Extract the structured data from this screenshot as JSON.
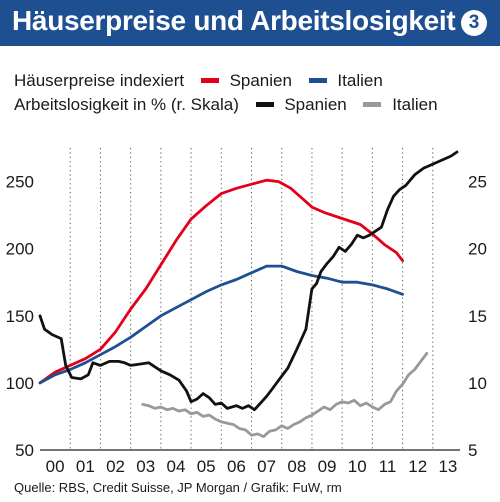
{
  "title": "Häuserpreise und Arbeitslosigkeit",
  "badge": "3",
  "legend": {
    "row1_label": "Häuserpreise indexiert",
    "row1_items": [
      {
        "name": "Spanien",
        "color": "#e3001b"
      },
      {
        "name": "Italien",
        "color": "#1d4f91"
      }
    ],
    "row2_label": "Arbeitslosigkeit in % (r. Skala)",
    "row2_items": [
      {
        "name": "Spanien",
        "color": "#111111"
      },
      {
        "name": "Italien",
        "color": "#999999"
      }
    ]
  },
  "source": "Quelle: RBS, Credit Suisse, JP Morgan / Grafik: FuW, rm",
  "chart_data": {
    "type": "line",
    "x_tick_labels": [
      "00",
      "01",
      "02",
      "03",
      "04",
      "05",
      "06",
      "07",
      "08",
      "09",
      "10",
      "11",
      "12",
      "13"
    ],
    "x_range": [
      2000.0,
      2013.9
    ],
    "left_axis": {
      "ylim": [
        50,
        275
      ],
      "ticks": [
        50,
        100,
        150,
        200,
        250
      ],
      "label": "Häuserpreise indexiert"
    },
    "right_axis": {
      "ylim": [
        5,
        27.5
      ],
      "ticks": [
        5,
        10,
        15,
        20,
        25
      ],
      "label": "Arbeitslosigkeit in % (r. Skala)"
    },
    "grid": "dotted vertical lines at year boundaries",
    "series": [
      {
        "name": "Spanien",
        "group": "Häuserpreise",
        "axis": "left",
        "color": "#e3001b",
        "width": 2.8,
        "x": [
          2000.0,
          2000.5,
          2001.0,
          2001.5,
          2002.0,
          2002.5,
          2003.0,
          2003.5,
          2004.0,
          2004.5,
          2005.0,
          2005.5,
          2006.0,
          2006.5,
          2007.0,
          2007.5,
          2007.9,
          2008.3,
          2008.7,
          2009.0,
          2009.4,
          2009.8,
          2010.2,
          2010.6,
          2011.0,
          2011.4,
          2011.8,
          2012.0
        ],
        "y": [
          100,
          108,
          113,
          118,
          125,
          138,
          155,
          170,
          188,
          206,
          222,
          232,
          241,
          245,
          248,
          251,
          250,
          245,
          237,
          231,
          227,
          224,
          221,
          218,
          211,
          203,
          197,
          191
        ]
      },
      {
        "name": "Italien",
        "group": "Häuserpreise",
        "axis": "left",
        "color": "#1d4f91",
        "width": 2.8,
        "x": [
          2000.0,
          2000.5,
          2001.0,
          2001.5,
          2002.0,
          2002.5,
          2003.0,
          2003.5,
          2004.0,
          2004.5,
          2005.0,
          2005.5,
          2006.0,
          2006.5,
          2007.0,
          2007.5,
          2008.0,
          2008.5,
          2009.0,
          2009.5,
          2010.0,
          2010.5,
          2011.0,
          2011.5,
          2012.0
        ],
        "y": [
          100,
          106,
          110,
          115,
          121,
          127,
          134,
          142,
          150,
          156,
          162,
          168,
          173,
          177,
          182,
          187,
          187,
          183,
          180,
          178,
          175,
          175,
          173,
          170,
          166
        ]
      },
      {
        "name": "Spanien",
        "group": "Arbeitslosigkeit",
        "axis": "right",
        "color": "#111111",
        "width": 2.8,
        "x": [
          2000.0,
          2000.15,
          2000.4,
          2000.7,
          2000.85,
          2001.05,
          2001.35,
          2001.6,
          2001.75,
          2002.0,
          2002.3,
          2002.6,
          2002.8,
          2003.0,
          2003.3,
          2003.6,
          2003.8,
          2004.0,
          2004.3,
          2004.6,
          2004.85,
          2005.0,
          2005.2,
          2005.4,
          2005.6,
          2005.8,
          2006.0,
          2006.2,
          2006.5,
          2006.7,
          2006.9,
          2007.1,
          2007.3,
          2007.5,
          2007.7,
          2007.9,
          2008.2,
          2008.5,
          2008.8,
          2009.0,
          2009.15,
          2009.3,
          2009.5,
          2009.7,
          2009.9,
          2010.1,
          2010.3,
          2010.5,
          2010.7,
          2010.9,
          2011.1,
          2011.3,
          2011.5,
          2011.7,
          2011.9,
          2012.1,
          2012.4,
          2012.7,
          2013.0,
          2013.3,
          2013.6,
          2013.8
        ],
        "y": [
          15.0,
          14.0,
          13.6,
          13.3,
          11.3,
          10.4,
          10.3,
          10.6,
          11.5,
          11.3,
          11.6,
          11.6,
          11.5,
          11.3,
          11.4,
          11.5,
          11.2,
          10.9,
          10.6,
          10.2,
          9.4,
          8.6,
          8.8,
          9.2,
          8.9,
          8.4,
          8.5,
          8.1,
          8.3,
          8.1,
          8.3,
          8.0,
          8.5,
          9.0,
          9.6,
          10.2,
          11.1,
          12.5,
          14.0,
          17.0,
          17.4,
          18.3,
          18.9,
          19.4,
          20.1,
          19.8,
          20.3,
          21.0,
          20.8,
          21.0,
          21.3,
          21.6,
          22.9,
          23.9,
          24.4,
          24.7,
          25.5,
          26.0,
          26.3,
          26.6,
          26.9,
          27.2
        ]
      },
      {
        "name": "Italien",
        "group": "Arbeitslosigkeit",
        "axis": "right",
        "color": "#999999",
        "width": 2.8,
        "x": [
          2003.4,
          2003.6,
          2003.8,
          2004.0,
          2004.2,
          2004.4,
          2004.6,
          2004.8,
          2005.0,
          2005.2,
          2005.4,
          2005.6,
          2005.8,
          2006.0,
          2006.2,
          2006.4,
          2006.6,
          2006.8,
          2007.0,
          2007.2,
          2007.4,
          2007.6,
          2007.8,
          2008.0,
          2008.2,
          2008.4,
          2008.6,
          2008.8,
          2009.0,
          2009.2,
          2009.4,
          2009.6,
          2009.8,
          2010.0,
          2010.2,
          2010.4,
          2010.6,
          2010.8,
          2011.0,
          2011.2,
          2011.4,
          2011.6,
          2011.8,
          2012.0,
          2012.2,
          2012.4,
          2012.6,
          2012.8
        ],
        "y": [
          8.4,
          8.3,
          8.1,
          8.2,
          8.0,
          8.1,
          7.9,
          8.0,
          7.7,
          7.8,
          7.5,
          7.6,
          7.3,
          7.1,
          7.0,
          6.9,
          6.6,
          6.5,
          6.1,
          6.2,
          6.0,
          6.4,
          6.5,
          6.8,
          6.6,
          6.9,
          7.1,
          7.4,
          7.6,
          7.9,
          8.2,
          8.0,
          8.4,
          8.6,
          8.5,
          8.7,
          8.3,
          8.5,
          8.2,
          8.0,
          8.4,
          8.6,
          9.4,
          9.9,
          10.6,
          11.0,
          11.6,
          12.2
        ]
      }
    ]
  }
}
